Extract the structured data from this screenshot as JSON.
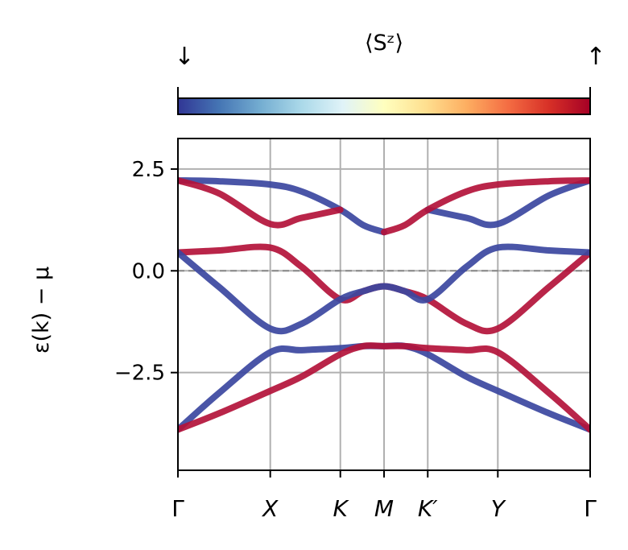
{
  "chart_data": {
    "type": "line",
    "title": "",
    "xlabel": "",
    "ylabel": "ε(k) − μ",
    "ylim": [
      -4.9,
      3.25
    ],
    "xlim": [
      0,
      1
    ],
    "yticks": [
      2.5,
      0.0,
      -2.5
    ],
    "ytick_labels": [
      "2.5",
      "0.0",
      "−2.5"
    ],
    "xticks": [
      {
        "label": "Γ",
        "pos": 0.0
      },
      {
        "label": "X",
        "pos": 0.224
      },
      {
        "label": "K",
        "pos": 0.394
      },
      {
        "label": "M",
        "pos": 0.5
      },
      {
        "label": "K′",
        "pos": 0.606
      },
      {
        "label": "Y",
        "pos": 0.776
      },
      {
        "label": "Γ",
        "pos": 1.0
      }
    ],
    "grid": true,
    "reference_line": {
      "y": 0.0,
      "style": "dashed"
    },
    "colorbar": {
      "label": "⟨Sᶻ⟩",
      "left_symbol": "↓",
      "right_symbol": "↑",
      "colormap": "RdYlBu_r",
      "stops": [
        "#313695",
        "#4575b4",
        "#74add1",
        "#abd9e9",
        "#e0f3f8",
        "#ffffbf",
        "#fee090",
        "#fdae61",
        "#f46d43",
        "#d73027",
        "#a50026"
      ]
    },
    "series": [
      {
        "name": "band-1",
        "color": "#3b46a0",
        "spin": -1,
        "x": [
          0,
          0.1,
          0.224,
          0.3,
          0.394,
          0.45,
          0.5
        ],
        "y": [
          2.22,
          2.2,
          2.12,
          1.95,
          1.5,
          1.12,
          0.95
        ]
      },
      {
        "name": "band-1-cont",
        "color": "#3b46a0",
        "spin": -1,
        "x": [
          0.606,
          0.7,
          0.776,
          0.9,
          1.0
        ],
        "y": [
          1.5,
          1.3,
          1.15,
          1.85,
          2.22
        ]
      },
      {
        "name": "band-2",
        "color": "#b3123a",
        "spin": 1,
        "x": [
          0,
          0.1,
          0.224,
          0.3,
          0.394
        ],
        "y": [
          2.22,
          1.9,
          1.15,
          1.3,
          1.5
        ]
      },
      {
        "name": "band-2-cont",
        "color": "#b3123a",
        "spin": 1,
        "x": [
          0.5,
          0.55,
          0.606,
          0.7,
          0.776,
          0.9,
          1.0
        ],
        "y": [
          0.95,
          1.12,
          1.5,
          1.95,
          2.12,
          2.2,
          2.22
        ]
      },
      {
        "name": "band-3",
        "color": "#b3123a",
        "spin": 1,
        "x": [
          0,
          0.1,
          0.224,
          0.3,
          0.394,
          0.45,
          0.5,
          0.55,
          0.606,
          0.7,
          0.776,
          0.9,
          1.0
        ],
        "y": [
          0.45,
          0.5,
          0.57,
          0.1,
          -0.7,
          -0.5,
          -0.38,
          -0.5,
          -0.7,
          -1.3,
          -1.42,
          -0.4,
          0.45
        ]
      },
      {
        "name": "band-4",
        "color": "#3b46a0",
        "spin": -1,
        "x": [
          0,
          0.1,
          0.224,
          0.3,
          0.394,
          0.45,
          0.5,
          0.55,
          0.606,
          0.7,
          0.776,
          0.9,
          1.0
        ],
        "y": [
          0.45,
          -0.4,
          -1.42,
          -1.3,
          -0.7,
          -0.5,
          -0.38,
          -0.5,
          -0.7,
          0.1,
          0.57,
          0.5,
          0.45
        ]
      },
      {
        "name": "band-5",
        "color": "#3b46a0",
        "spin": -1,
        "x": [
          0,
          0.1,
          0.224,
          0.3,
          0.394,
          0.45,
          0.5,
          0.55,
          0.606,
          0.7,
          0.776,
          0.9,
          1.0
        ],
        "y": [
          -3.9,
          -3.0,
          -2.0,
          -1.95,
          -1.9,
          -1.85,
          -1.85,
          -1.85,
          -2.05,
          -2.6,
          -2.95,
          -3.5,
          -3.9
        ]
      },
      {
        "name": "band-6",
        "color": "#b3123a",
        "spin": 1,
        "x": [
          0,
          0.1,
          0.224,
          0.3,
          0.394,
          0.45,
          0.5,
          0.55,
          0.606,
          0.7,
          0.776,
          0.9,
          1.0
        ],
        "y": [
          -3.9,
          -3.5,
          -2.95,
          -2.6,
          -2.05,
          -1.85,
          -1.85,
          -1.85,
          -1.9,
          -1.95,
          -2.0,
          -3.0,
          -3.9
        ]
      }
    ]
  }
}
